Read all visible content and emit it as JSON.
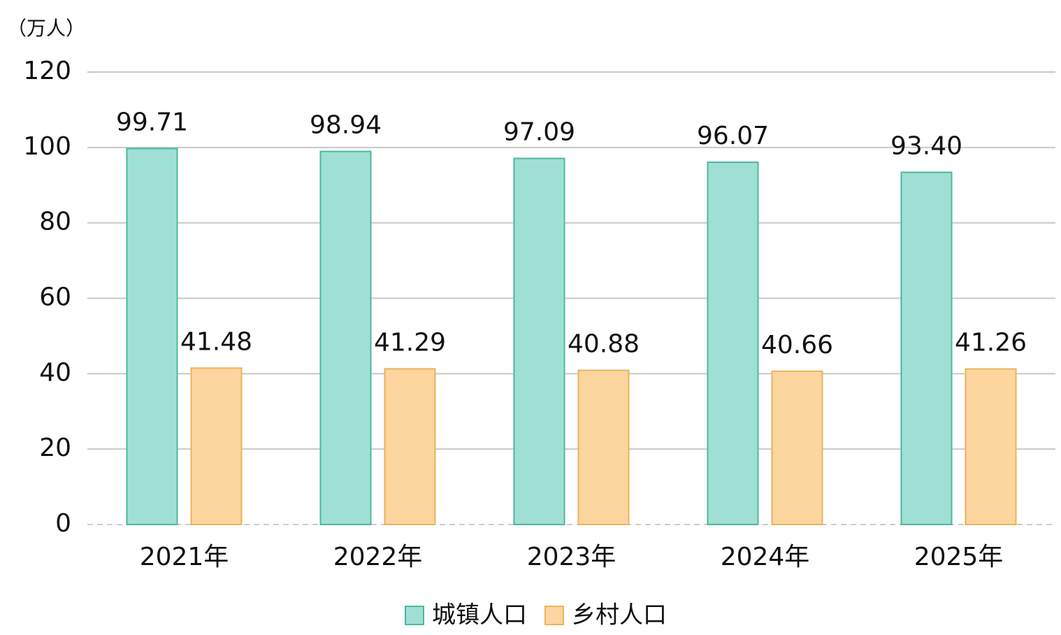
{
  "chart_data": {
    "type": "bar",
    "y_label": "（万人）",
    "categories": [
      "2021年",
      "2022年",
      "2023年",
      "2024年",
      "2025年"
    ],
    "series": [
      {
        "name": "城镇人口",
        "color": "#a0e0d4",
        "values": [
          99.71,
          98.94,
          97.09,
          96.07,
          93.4
        ],
        "value_labels": [
          "99.71",
          "98.94",
          "97.09",
          "96.07",
          "93.40"
        ]
      },
      {
        "name": "乡村人口",
        "color": "#fcd59f",
        "values": [
          41.48,
          41.29,
          40.88,
          40.66,
          41.26
        ],
        "value_labels": [
          "41.48",
          "41.29",
          "40.88",
          "40.66",
          "41.26"
        ]
      }
    ],
    "ylim": [
      0,
      120
    ],
    "yticks": [
      0,
      20,
      40,
      60,
      80,
      100,
      120
    ],
    "grid": true,
    "legend": "bottom"
  }
}
